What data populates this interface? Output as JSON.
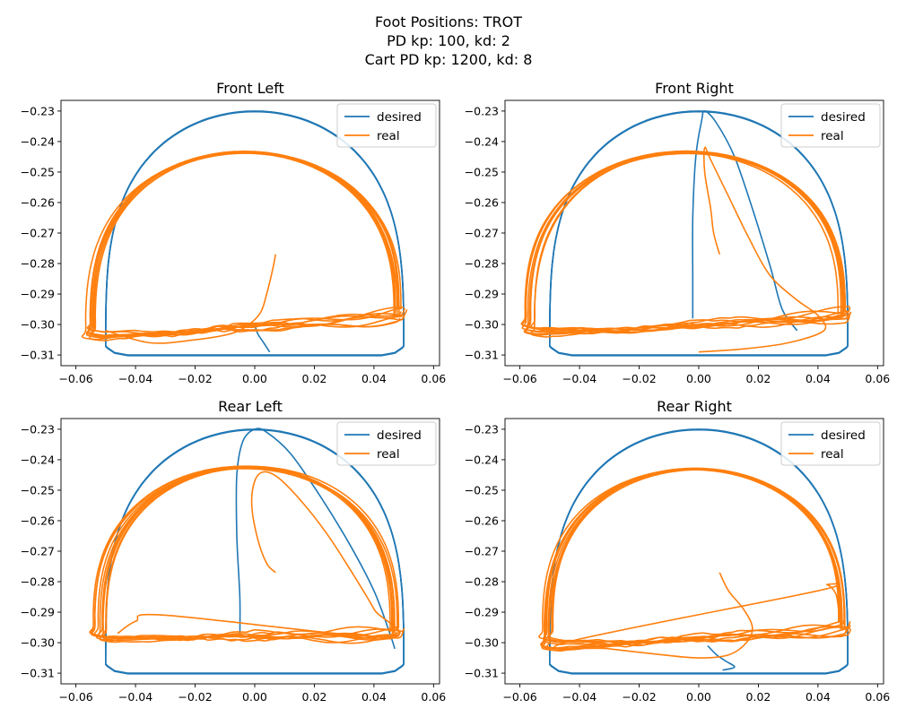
{
  "figure": {
    "title_lines": [
      "Foot Positions: TROT",
      "PD kp: 100, kd: 2",
      "Cart PD kp: 1200, kd: 8"
    ]
  },
  "colors": {
    "desired": "#1f77b4",
    "real": "#ff7f0e"
  },
  "chart_data": [
    {
      "type": "line",
      "title": "Front Left",
      "xlabel": "",
      "ylabel": "",
      "xlim": [
        -0.065,
        0.062
      ],
      "ylim": [
        -0.3135,
        -0.2265
      ],
      "xticks": [
        "-0.06",
        "-0.04",
        "-0.02",
        "0.00",
        "0.02",
        "0.04",
        "0.06"
      ],
      "yticks": [
        "-0.23",
        "-0.24",
        "-0.25",
        "-0.26",
        "-0.27",
        "-0.28",
        "-0.29",
        "-0.30",
        "-0.31"
      ],
      "legend": {
        "position": "top-right",
        "entries": [
          "desired",
          "real"
        ]
      },
      "series": [
        {
          "name": "desired",
          "cycle": {
            "x_amp": 0.05,
            "y_top": -0.23,
            "y_bot": -0.31
          },
          "transient": [
            [
              0.0,
              -0.3
            ],
            [
              0.001,
              -0.303
            ],
            [
              0.003,
              -0.306
            ],
            [
              0.005,
              -0.309
            ]
          ]
        },
        {
          "name": "real",
          "cycle": {
            "x_left": -0.054,
            "x_right": 0.049,
            "y_top": -0.2435,
            "y_bot": -0.306,
            "y_bot_right": -0.3,
            "spread": 0.0025
          },
          "transient": [
            [
              0.007,
              -0.277
            ],
            [
              0.006,
              -0.282
            ],
            [
              0.004,
              -0.29
            ],
            [
              0.002,
              -0.296
            ],
            [
              -0.002,
              -0.3
            ],
            [
              -0.008,
              -0.303
            ],
            [
              -0.02,
              -0.305
            ],
            [
              -0.035,
              -0.306
            ],
            [
              -0.05,
              -0.302
            ]
          ]
        }
      ]
    },
    {
      "type": "line",
      "title": "Front Right",
      "xlabel": "",
      "ylabel": "",
      "xlim": [
        -0.065,
        0.062
      ],
      "ylim": [
        -0.3135,
        -0.2265
      ],
      "xticks": [
        "-0.06",
        "-0.04",
        "-0.02",
        "0.00",
        "0.02",
        "0.04",
        "0.06"
      ],
      "yticks": [
        "-0.23",
        "-0.24",
        "-0.25",
        "-0.26",
        "-0.27",
        "-0.28",
        "-0.29",
        "-0.30",
        "-0.31"
      ],
      "legend": {
        "position": "top-right",
        "entries": [
          "desired",
          "real"
        ]
      },
      "series": [
        {
          "name": "desired",
          "cycle": {
            "x_amp": 0.05,
            "y_top": -0.23,
            "y_bot": -0.31
          },
          "transient": [
            [
              -0.002,
              -0.298
            ],
            [
              -0.002,
              -0.285
            ],
            [
              -0.002,
              -0.265
            ],
            [
              -0.001,
              -0.245
            ],
            [
              0.001,
              -0.233
            ],
            [
              0.002,
              -0.23
            ],
            [
              0.006,
              -0.234
            ],
            [
              0.012,
              -0.245
            ],
            [
              0.018,
              -0.262
            ],
            [
              0.024,
              -0.281
            ],
            [
              0.028,
              -0.295
            ],
            [
              0.033,
              -0.302
            ]
          ]
        },
        {
          "name": "real",
          "cycle": {
            "x_left": -0.056,
            "x_right": 0.049,
            "y_top": -0.2435,
            "y_bot": -0.305,
            "y_bot_right": -0.3,
            "spread": 0.003
          },
          "transient": [
            [
              0.007,
              -0.277
            ],
            [
              0.005,
              -0.27
            ],
            [
              0.004,
              -0.262
            ],
            [
              0.002,
              -0.25
            ],
            [
              0.002,
              -0.242
            ],
            [
              0.004,
              -0.246
            ],
            [
              0.01,
              -0.258
            ],
            [
              0.017,
              -0.272
            ],
            [
              0.024,
              -0.284
            ],
            [
              0.033,
              -0.292
            ],
            [
              0.04,
              -0.297
            ],
            [
              0.042,
              -0.302
            ],
            [
              0.03,
              -0.306
            ],
            [
              0.015,
              -0.308
            ],
            [
              0.0,
              -0.309
            ]
          ]
        }
      ]
    },
    {
      "type": "line",
      "title": "Rear Left",
      "xlabel": "",
      "ylabel": "",
      "xlim": [
        -0.065,
        0.062
      ],
      "ylim": [
        -0.3135,
        -0.2265
      ],
      "xticks": [
        "-0.06",
        "-0.04",
        "-0.02",
        "0.00",
        "0.02",
        "0.04",
        "0.06"
      ],
      "yticks": [
        "-0.23",
        "-0.24",
        "-0.25",
        "-0.26",
        "-0.27",
        "-0.28",
        "-0.29",
        "-0.30",
        "-0.31"
      ],
      "legend": {
        "position": "top-right",
        "entries": [
          "desired",
          "real"
        ]
      },
      "series": [
        {
          "name": "desired",
          "cycle": {
            "x_amp": 0.05,
            "y_top": -0.23,
            "y_bot": -0.31
          },
          "transient": [
            [
              -0.005,
              -0.298
            ],
            [
              -0.005,
              -0.285
            ],
            [
              -0.006,
              -0.265
            ],
            [
              -0.006,
              -0.245
            ],
            [
              -0.004,
              -0.234
            ],
            [
              0.0,
              -0.23
            ],
            [
              0.004,
              -0.231
            ],
            [
              0.012,
              -0.238
            ],
            [
              0.022,
              -0.252
            ],
            [
              0.032,
              -0.268
            ],
            [
              0.04,
              -0.283
            ],
            [
              0.045,
              -0.296
            ],
            [
              0.047,
              -0.302
            ]
          ]
        },
        {
          "name": "real",
          "cycle": {
            "x_left": -0.051,
            "x_right": 0.048,
            "y_top": -0.2425,
            "y_bot": -0.3,
            "y_bot_right": -0.3,
            "spread": 0.0035
          },
          "transient": [
            [
              0.007,
              -0.277
            ],
            [
              0.004,
              -0.274
            ],
            [
              0.001,
              -0.266
            ],
            [
              -0.001,
              -0.255
            ],
            [
              0.0,
              -0.247
            ],
            [
              0.003,
              -0.244
            ],
            [
              0.008,
              -0.246
            ],
            [
              0.016,
              -0.254
            ],
            [
              0.024,
              -0.264
            ],
            [
              0.032,
              -0.276
            ],
            [
              0.04,
              -0.289
            ],
            [
              0.044,
              -0.298
            ],
            [
              -0.03,
              -0.291
            ],
            [
              -0.04,
              -0.293
            ],
            [
              -0.046,
              -0.297
            ]
          ]
        }
      ]
    },
    {
      "type": "line",
      "title": "Rear Right",
      "xlabel": "",
      "ylabel": "",
      "xlim": [
        -0.065,
        0.062
      ],
      "ylim": [
        -0.3135,
        -0.2265
      ],
      "xticks": [
        "-0.06",
        "-0.04",
        "-0.02",
        "0.00",
        "0.02",
        "0.04",
        "0.06"
      ],
      "yticks": [
        "-0.23",
        "-0.24",
        "-0.25",
        "-0.26",
        "-0.27",
        "-0.28",
        "-0.29",
        "-0.30",
        "-0.31"
      ],
      "legend": {
        "position": "top-right",
        "entries": [
          "desired",
          "real"
        ]
      },
      "series": [
        {
          "name": "desired",
          "cycle": {
            "x_amp": 0.05,
            "y_top": -0.23,
            "y_bot": -0.31
          },
          "transient": [
            [
              0.003,
              -0.301
            ],
            [
              0.006,
              -0.304
            ],
            [
              0.009,
              -0.306
            ],
            [
              0.012,
              -0.308
            ],
            [
              0.008,
              -0.309
            ]
          ]
        },
        {
          "name": "real",
          "cycle": {
            "x_left": -0.05,
            "x_right": 0.049,
            "y_top": -0.243,
            "y_bot": -0.303,
            "y_bot_right": -0.298,
            "spread": 0.003
          },
          "transient": [
            [
              0.007,
              -0.277
            ],
            [
              0.01,
              -0.283
            ],
            [
              0.015,
              -0.289
            ],
            [
              0.018,
              -0.295
            ],
            [
              0.016,
              -0.3
            ],
            [
              0.01,
              -0.304
            ],
            [
              0.0,
              -0.305
            ],
            [
              -0.012,
              -0.304
            ],
            [
              -0.03,
              -0.302
            ],
            [
              -0.045,
              -0.3
            ],
            [
              0.04,
              -0.283
            ],
            [
              0.043,
              -0.281
            ],
            [
              0.046,
              -0.284
            ],
            [
              0.047,
              -0.29
            ]
          ]
        }
      ]
    }
  ]
}
